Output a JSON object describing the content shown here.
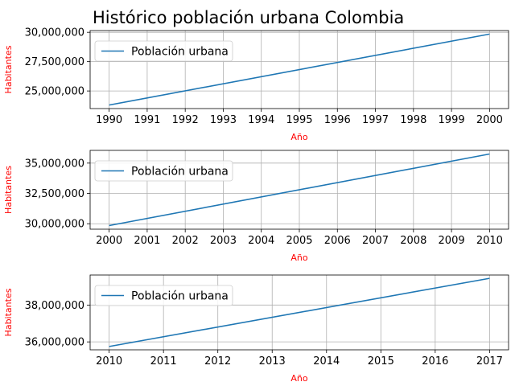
{
  "title": "Histórico población urbana Colombia",
  "colors": {
    "line": "#1f77b4",
    "grid": "#b0b0b0",
    "axis_label": "#ff0000",
    "frame": "#000000"
  },
  "chart_data": [
    {
      "type": "line",
      "x": [
        1990,
        2000
      ],
      "y": [
        23800000,
        29850000
      ],
      "series": [
        {
          "name": "Población urbana",
          "x": [
            1990,
            2000
          ],
          "y": [
            23800000,
            29850000
          ]
        }
      ],
      "xticks": [
        "1990",
        "1991",
        "1992",
        "1993",
        "1994",
        "1995",
        "1996",
        "1997",
        "1998",
        "1999",
        "2000"
      ],
      "yticks": [
        "25,000,000",
        "27,500,000",
        "30,000,000"
      ],
      "xlabel": "Año",
      "ylabel": "Habitantes",
      "xlim": [
        1989.5,
        2000.5
      ],
      "ylim": [
        23500000,
        30150000
      ],
      "grid": true,
      "legend": "upper left"
    },
    {
      "type": "line",
      "x": [
        2000,
        2010
      ],
      "y": [
        29850000,
        35750000
      ],
      "series": [
        {
          "name": "Población urbana",
          "x": [
            2000,
            2010
          ],
          "y": [
            29850000,
            35750000
          ]
        }
      ],
      "xticks": [
        "2000",
        "2001",
        "2002",
        "2003",
        "2004",
        "2005",
        "2006",
        "2007",
        "2008",
        "2009",
        "2010"
      ],
      "yticks": [
        "30,000,000",
        "32,500,000",
        "35,000,000"
      ],
      "xlabel": "Año",
      "ylabel": "Habitantes",
      "xlim": [
        1999.5,
        2010.5
      ],
      "ylim": [
        29550000,
        36050000
      ],
      "grid": true,
      "legend": "upper left"
    },
    {
      "type": "line",
      "x": [
        2010,
        2017
      ],
      "y": [
        35750000,
        39450000
      ],
      "series": [
        {
          "name": "Población urbana",
          "x": [
            2010,
            2017
          ],
          "y": [
            35750000,
            39450000
          ]
        }
      ],
      "xticks": [
        "2010",
        "2011",
        "2012",
        "2013",
        "2014",
        "2015",
        "2016",
        "2017"
      ],
      "yticks": [
        "36,000,000",
        "38,000,000"
      ],
      "xlabel": "Año",
      "ylabel": "Habitantes",
      "xlim": [
        2009.65,
        2017.35
      ],
      "ylim": [
        35570000,
        39630000
      ],
      "grid": true,
      "legend": "upper left"
    }
  ]
}
